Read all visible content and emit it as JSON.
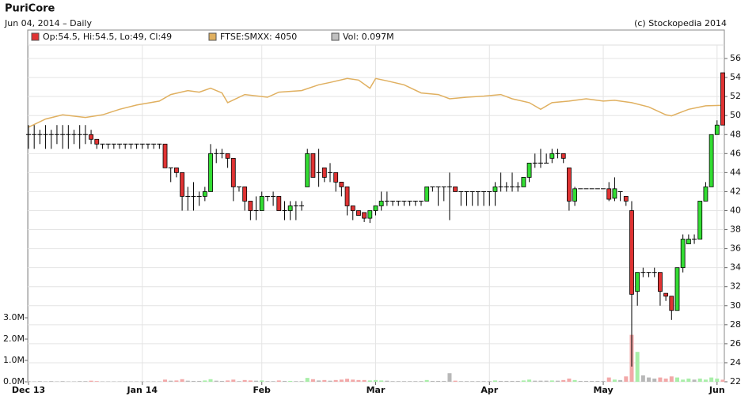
{
  "chart_data": {
    "type": "candlestick",
    "title": "PuriCore",
    "subtitle": "Jun 04, 2014 – Daily",
    "credit": "(c) Stockopedia 2014",
    "legend": [
      {
        "label": "Op:54.5, Hi:54.5, Lo:49, Cl:49",
        "color": "#e03333"
      },
      {
        "label": "FTSE:SMXX: 4050",
        "color": "#e0b060"
      },
      {
        "label": "Vol: 0.097M",
        "color": "#c0c0c0"
      }
    ],
    "grid": true,
    "up_color": "#33dd33",
    "down_color": "#e03333",
    "flat_volume_color": "#b8b8b8",
    "up_volume_color": "#a8eea8",
    "down_volume_color": "#f2a8a8",
    "xlim": [
      0,
      122
    ],
    "xticks": [
      {
        "value": 0,
        "label": "Dec 13"
      },
      {
        "value": 20,
        "label": "Jan 14"
      },
      {
        "value": 41,
        "label": "Feb"
      },
      {
        "value": 61,
        "label": "Mar"
      },
      {
        "value": 81,
        "label": "Apr"
      },
      {
        "value": 101,
        "label": "May"
      },
      {
        "value": 121,
        "label": "Jun"
      }
    ],
    "ylim": [
      22,
      57
    ],
    "yticks": [
      22,
      24,
      26,
      28,
      30,
      32,
      34,
      36,
      38,
      40,
      42,
      44,
      46,
      48,
      50,
      52,
      54,
      56
    ],
    "vol_ylim": [
      0,
      15.6
    ],
    "vol_yticks": [
      {
        "value": 0,
        "label": "0.0M"
      },
      {
        "value": 1,
        "label": "1.0M"
      },
      {
        "value": 2,
        "label": "2.0M"
      },
      {
        "value": 3,
        "label": "3.0M"
      }
    ],
    "ftse": {
      "color": "#e0b060",
      "ylim": [
        3000,
        4264
      ],
      "x": [
        0,
        3,
        6,
        10,
        13,
        16,
        19,
        23,
        25,
        28,
        30,
        32,
        34,
        35,
        38,
        42,
        44,
        48,
        51,
        53,
        56,
        58,
        60,
        61,
        63,
        66,
        69,
        72,
        74,
        77,
        80,
        83,
        85,
        88,
        90,
        92,
        95,
        98,
        101,
        103,
        106,
        109,
        112,
        113,
        116,
        119,
        122
      ],
      "values": [
        3967,
        3998,
        4014,
        4004,
        4014,
        4035,
        4051,
        4066,
        4091,
        4106,
        4100,
        4115,
        4097,
        4060,
        4091,
        4081,
        4100,
        4106,
        4128,
        4137,
        4152,
        4146,
        4115,
        4152,
        4143,
        4128,
        4097,
        4091,
        4075,
        4081,
        4085,
        4091,
        4075,
        4060,
        4035,
        4060,
        4066,
        4075,
        4066,
        4069,
        4060,
        4044,
        4014,
        4010,
        4035,
        4048,
        4050
      ]
    },
    "open": [
      48,
      48,
      48,
      48,
      48,
      48,
      48,
      48,
      48,
      48,
      48,
      48,
      47.5,
      47,
      47,
      47,
      47,
      47,
      47,
      47,
      47,
      47,
      47,
      47,
      47,
      44.5,
      44.5,
      44,
      41.5,
      41.5,
      41.5,
      41.5,
      42,
      46,
      46,
      46,
      45.5,
      42.5,
      42.5,
      41,
      40,
      40,
      41.5,
      41.5,
      41.5,
      40,
      40,
      40.5,
      40.5,
      42.5,
      46,
      44,
      44.5,
      44,
      44,
      43,
      42.5,
      40.5,
      40,
      39.8,
      39.2,
      40,
      40.5,
      41,
      41,
      41,
      41,
      41,
      41,
      41,
      41,
      42.5,
      42.5,
      42.5,
      42.5,
      42.5,
      42,
      42,
      42,
      42,
      42,
      42,
      42,
      42.5,
      42.5,
      42.5,
      42.5,
      42.5,
      43.5,
      45,
      45,
      45,
      45.5,
      46,
      46,
      44.5,
      41,
      42.3,
      42.3,
      42.3,
      42.3,
      42.3,
      42.3,
      41.3,
      42,
      41.5,
      40,
      31.5,
      33.5,
      33.5,
      33.5,
      33.5,
      31.3,
      31,
      29.5,
      34,
      36.5,
      37,
      37,
      41,
      42.5,
      48,
      54.5
    ],
    "high": [
      49,
      49,
      48.5,
      49,
      48.5,
      49,
      49,
      49,
      48.5,
      49,
      49,
      48.5,
      47.5,
      47,
      47,
      47,
      47,
      47,
      47,
      47,
      47,
      47,
      47,
      47,
      47,
      44.5,
      44.5,
      44,
      42.5,
      43,
      42,
      42.5,
      47,
      46.5,
      46.5,
      46,
      45.5,
      42.5,
      42.5,
      41,
      41.5,
      42,
      41.5,
      42,
      41.5,
      41,
      41,
      41,
      41,
      46.5,
      46,
      46.5,
      44.5,
      45,
      44,
      43,
      42.5,
      40.5,
      40,
      39.8,
      40,
      40.5,
      42,
      42,
      41,
      41,
      41,
      41,
      41,
      41,
      42.5,
      42.5,
      42.5,
      42.5,
      44,
      42.5,
      42,
      42,
      42,
      42,
      42,
      42,
      43,
      44,
      43,
      44,
      43,
      43.5,
      45,
      46,
      46.5,
      46,
      46.5,
      46.5,
      46,
      44.5,
      42.5,
      42.3,
      42.3,
      42.3,
      42.3,
      42.3,
      43,
      43.5,
      42,
      41.5,
      41,
      33.5,
      34,
      33.5,
      34,
      33.5,
      31.3,
      31,
      34,
      37.5,
      37.5,
      37.5,
      41,
      43,
      48,
      49.5,
      54.5
    ],
    "low": [
      46.5,
      46.5,
      47,
      46.5,
      46.5,
      47,
      46.5,
      46.5,
      47,
      46.5,
      47,
      47,
      46.5,
      46.5,
      46.5,
      46.5,
      46.5,
      46.5,
      46.5,
      46.5,
      46.5,
      46.5,
      46.5,
      46.5,
      44.5,
      43,
      43.5,
      40,
      40,
      40,
      40.5,
      41,
      42,
      45,
      45.5,
      44.5,
      41,
      42,
      40,
      39,
      39,
      40,
      41,
      40.5,
      40,
      39,
      39,
      39,
      40,
      42.5,
      43.5,
      42.5,
      43,
      43,
      42,
      41.5,
      39.5,
      39,
      39.5,
      38.8,
      38.7,
      39.5,
      40,
      40.5,
      40.5,
      40.5,
      40.5,
      40.5,
      40.5,
      40.5,
      41,
      42,
      40.5,
      41,
      39,
      42,
      40.5,
      40.5,
      40.5,
      40.5,
      40.5,
      40.5,
      40.5,
      42,
      42,
      42,
      42,
      42.5,
      43,
      44.5,
      44.5,
      45,
      45,
      45.5,
      45,
      40,
      40.5,
      42.3,
      42.3,
      42.3,
      42.3,
      42.3,
      41,
      41,
      41,
      40.5,
      23.6,
      30,
      33,
      33,
      33,
      30,
      30.5,
      28.5,
      29.5,
      33.5,
      36.5,
      36.5,
      37,
      41,
      42.5,
      48,
      49
    ],
    "close": [
      48,
      48,
      48,
      48,
      48,
      48,
      48,
      48,
      48,
      48,
      48,
      47.5,
      47,
      47,
      47,
      47,
      47,
      47,
      47,
      47,
      47,
      47,
      47,
      47,
      44.5,
      44.5,
      44,
      41.5,
      41.5,
      41.5,
      41.5,
      42,
      46,
      46,
      46,
      45.5,
      42.5,
      42.5,
      41,
      40,
      40,
      41.5,
      41.5,
      41.5,
      40,
      40,
      40.5,
      40.5,
      40.5,
      46,
      43.5,
      44,
      43.5,
      44,
      43,
      42.5,
      40.5,
      40,
      39.5,
      39.2,
      40,
      40.5,
      41,
      41,
      41,
      41,
      41,
      41,
      41,
      41,
      42.5,
      42.5,
      42.5,
      42.5,
      42.5,
      42,
      42,
      42,
      42,
      42,
      42,
      42,
      42.5,
      42.5,
      42.5,
      42.5,
      42.5,
      43.5,
      45,
      45,
      45,
      45,
      46,
      46,
      45.5,
      41,
      42.3,
      42.3,
      42.3,
      42.3,
      42.3,
      42.3,
      41.2,
      42.3,
      42,
      41,
      31.2,
      33.5,
      33.5,
      33.5,
      33.5,
      31.5,
      31,
      29.5,
      34,
      37,
      37,
      37,
      41,
      42.5,
      48,
      49,
      49
    ],
    "volume": [
      0.03,
      0.02,
      0.03,
      0.02,
      0.03,
      0.02,
      0.03,
      0.02,
      0.02,
      0.03,
      0.03,
      0.05,
      0.03,
      0.02,
      0.02,
      0.02,
      0.02,
      0.02,
      0.02,
      0.02,
      0.02,
      0.02,
      0.02,
      0.02,
      0.1,
      0.05,
      0.06,
      0.12,
      0.05,
      0.04,
      0.04,
      0.06,
      0.12,
      0.05,
      0.04,
      0.06,
      0.1,
      0.03,
      0.08,
      0.06,
      0.05,
      0.06,
      0.03,
      0.03,
      0.06,
      0.04,
      0.04,
      0.03,
      0.03,
      0.18,
      0.12,
      0.06,
      0.08,
      0.05,
      0.08,
      0.1,
      0.14,
      0.1,
      0.08,
      0.08,
      0.06,
      0.08,
      0.06,
      0.05,
      0.03,
      0.03,
      0.03,
      0.03,
      0.03,
      0.03,
      0.08,
      0.04,
      0.04,
      0.04,
      0.4,
      0.05,
      0.03,
      0.03,
      0.03,
      0.03,
      0.03,
      0.03,
      0.06,
      0.04,
      0.04,
      0.04,
      0.04,
      0.06,
      0.1,
      0.05,
      0.05,
      0.05,
      0.06,
      0.05,
      0.08,
      0.15,
      0.08,
      0.04,
      0.04,
      0.04,
      0.04,
      0.04,
      0.2,
      0.1,
      0.08,
      0.25,
      2.2,
      1.4,
      0.3,
      0.2,
      0.15,
      0.2,
      0.15,
      0.25,
      0.2,
      0.1,
      0.15,
      0.1,
      0.15,
      0.1,
      0.2,
      0.15,
      0.097
    ]
  }
}
